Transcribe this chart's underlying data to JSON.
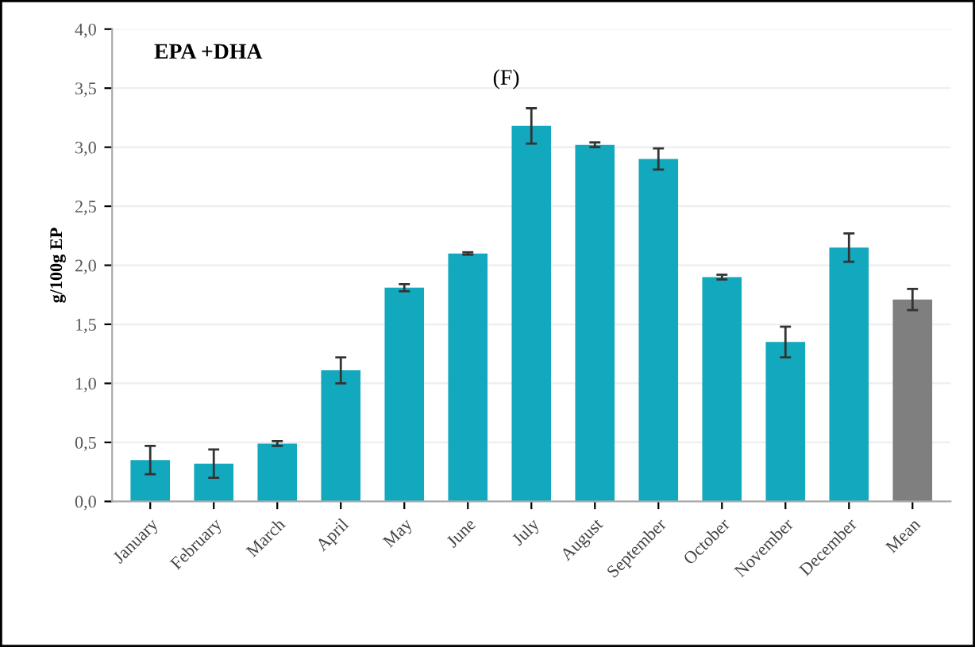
{
  "chart_data": {
    "type": "bar",
    "title": "EPA +DHA",
    "ylabel": "g/100g EP",
    "annotations": [
      "(F)"
    ],
    "categories": [
      "January",
      "February",
      "March",
      "April",
      "May",
      "June",
      "July",
      "August",
      "September",
      "October",
      "November",
      "December",
      "Mean"
    ],
    "values": [
      0.35,
      0.32,
      0.49,
      1.11,
      1.81,
      2.1,
      3.18,
      3.02,
      2.9,
      1.9,
      1.35,
      2.15,
      1.71
    ],
    "errors": [
      0.12,
      0.12,
      0.02,
      0.11,
      0.03,
      0.01,
      0.15,
      0.02,
      0.09,
      0.02,
      0.13,
      0.12,
      0.09
    ],
    "colors": [
      "#12a8be",
      "#12a8be",
      "#12a8be",
      "#12a8be",
      "#12a8be",
      "#12a8be",
      "#12a8be",
      "#12a8be",
      "#12a8be",
      "#12a8be",
      "#12a8be",
      "#12a8be",
      "#7f7f7f"
    ],
    "ylim": [
      0,
      4
    ],
    "yticks": [
      {
        "value": 0,
        "label": "0,0"
      },
      {
        "value": 0.5,
        "label": "0,5"
      },
      {
        "value": 1,
        "label": "1,0"
      },
      {
        "value": 1.5,
        "label": "1,5"
      },
      {
        "value": 2,
        "label": "2,0"
      },
      {
        "value": 2.5,
        "label": "2,5"
      },
      {
        "value": 3,
        "label": "3,0"
      },
      {
        "value": 3.5,
        "label": "3,5"
      },
      {
        "value": 4,
        "label": "4,0"
      }
    ],
    "grid": "y"
  }
}
